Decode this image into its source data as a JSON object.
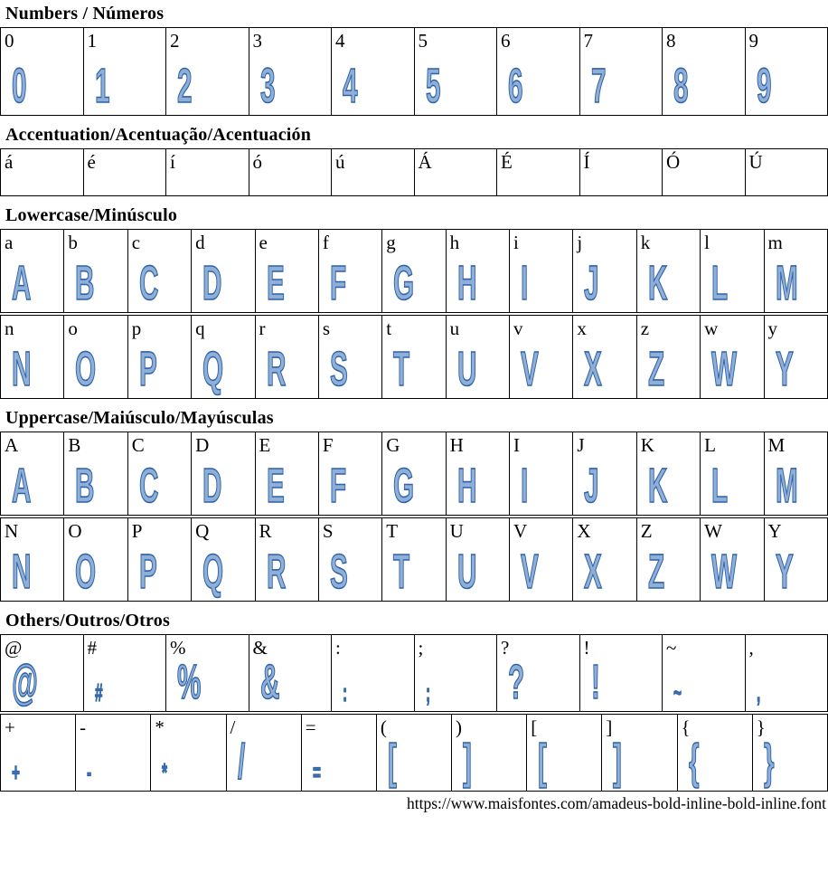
{
  "page": {
    "url_caption": "https://www.maisfontes.com/amadeus-bold-inline-bold-inline.font",
    "glyph_stroke_color": "#2d62a6",
    "glyph_fill_color": "#8fafd8",
    "border_color": "#000000"
  },
  "sections": [
    {
      "id": "numbers",
      "title": "Numbers / Números",
      "rows": [
        [
          {
            "label": "0",
            "glyph": "0"
          },
          {
            "label": "1",
            "glyph": "1"
          },
          {
            "label": "2",
            "glyph": "2"
          },
          {
            "label": "3",
            "glyph": "3"
          },
          {
            "label": "4",
            "glyph": "4"
          },
          {
            "label": "5",
            "glyph": "5"
          },
          {
            "label": "6",
            "glyph": "6"
          },
          {
            "label": "7",
            "glyph": "7"
          },
          {
            "label": "8",
            "glyph": "8"
          },
          {
            "label": "9",
            "glyph": "9"
          }
        ]
      ]
    },
    {
      "id": "accentuation",
      "title": "Accentuation/Acentuação/Acentuación",
      "rows": [
        [
          {
            "label": "á",
            "glyph": ""
          },
          {
            "label": "é",
            "glyph": ""
          },
          {
            "label": "í",
            "glyph": ""
          },
          {
            "label": "ó",
            "glyph": ""
          },
          {
            "label": "ú",
            "glyph": ""
          },
          {
            "label": "Á",
            "glyph": ""
          },
          {
            "label": "É",
            "glyph": ""
          },
          {
            "label": "Í",
            "glyph": ""
          },
          {
            "label": "Ó",
            "glyph": ""
          },
          {
            "label": "Ú",
            "glyph": ""
          }
        ]
      ]
    },
    {
      "id": "lowercase",
      "title": "Lowercase/Minúsculo",
      "rows": [
        [
          {
            "label": "a",
            "glyph": "A"
          },
          {
            "label": "b",
            "glyph": "B"
          },
          {
            "label": "c",
            "glyph": "C"
          },
          {
            "label": "d",
            "glyph": "D"
          },
          {
            "label": "e",
            "glyph": "E"
          },
          {
            "label": "f",
            "glyph": "F"
          },
          {
            "label": "g",
            "glyph": "G"
          },
          {
            "label": "h",
            "glyph": "H"
          },
          {
            "label": "i",
            "glyph": "I"
          },
          {
            "label": "j",
            "glyph": "J"
          },
          {
            "label": "k",
            "glyph": "K"
          },
          {
            "label": "l",
            "glyph": "L"
          },
          {
            "label": "m",
            "glyph": "M"
          }
        ],
        [
          {
            "label": "n",
            "glyph": "N"
          },
          {
            "label": "o",
            "glyph": "O"
          },
          {
            "label": "p",
            "glyph": "P"
          },
          {
            "label": "q",
            "glyph": "Q"
          },
          {
            "label": "r",
            "glyph": "R"
          },
          {
            "label": "s",
            "glyph": "S"
          },
          {
            "label": "t",
            "glyph": "T"
          },
          {
            "label": "u",
            "glyph": "U"
          },
          {
            "label": "v",
            "glyph": "V"
          },
          {
            "label": "x",
            "glyph": "X"
          },
          {
            "label": "z",
            "glyph": "Z"
          },
          {
            "label": "w",
            "glyph": "W"
          },
          {
            "label": "y",
            "glyph": "Y"
          }
        ]
      ]
    },
    {
      "id": "uppercase",
      "title": "Uppercase/Maiúsculo/Mayúsculas",
      "rows": [
        [
          {
            "label": "A",
            "glyph": "A"
          },
          {
            "label": "B",
            "glyph": "B"
          },
          {
            "label": "C",
            "glyph": "C"
          },
          {
            "label": "D",
            "glyph": "D"
          },
          {
            "label": "E",
            "glyph": "E"
          },
          {
            "label": "F",
            "glyph": "F"
          },
          {
            "label": "G",
            "glyph": "G"
          },
          {
            "label": "H",
            "glyph": "H"
          },
          {
            "label": "I",
            "glyph": "I"
          },
          {
            "label": "J",
            "glyph": "J"
          },
          {
            "label": "K",
            "glyph": "K"
          },
          {
            "label": "L",
            "glyph": "L"
          },
          {
            "label": "M",
            "glyph": "M"
          }
        ],
        [
          {
            "label": "N",
            "glyph": "N"
          },
          {
            "label": "O",
            "glyph": "O"
          },
          {
            "label": "P",
            "glyph": "P"
          },
          {
            "label": "Q",
            "glyph": "Q"
          },
          {
            "label": "R",
            "glyph": "R"
          },
          {
            "label": "S",
            "glyph": "S"
          },
          {
            "label": "T",
            "glyph": "T"
          },
          {
            "label": "U",
            "glyph": "U"
          },
          {
            "label": "V",
            "glyph": "V"
          },
          {
            "label": "X",
            "glyph": "X"
          },
          {
            "label": "Z",
            "glyph": "Z"
          },
          {
            "label": "W",
            "glyph": "W"
          },
          {
            "label": "Y",
            "glyph": "Y"
          }
        ]
      ]
    },
    {
      "id": "others",
      "title": "Others/Outros/Otros",
      "rows": [
        [
          {
            "label": "@",
            "glyph": "@"
          },
          {
            "label": "#",
            "glyph": "#",
            "size": "sm"
          },
          {
            "label": "%",
            "glyph": "%"
          },
          {
            "label": "&",
            "glyph": "&"
          },
          {
            "label": ":",
            "glyph": ":",
            "size": "sm"
          },
          {
            "label": ";",
            "glyph": ";",
            "size": "sm"
          },
          {
            "label": "?",
            "glyph": "?"
          },
          {
            "label": "!",
            "glyph": "!"
          },
          {
            "label": "~",
            "glyph": "~",
            "size": "sm"
          },
          {
            "label": ",",
            "glyph": ",",
            "size": "sm"
          }
        ],
        [
          {
            "label": "+",
            "glyph": "+",
            "size": "sm"
          },
          {
            "label": "-",
            "glyph": "-",
            "size": "sm"
          },
          {
            "label": "*",
            "glyph": "*",
            "size": "sm"
          },
          {
            "label": "/",
            "glyph": "/"
          },
          {
            "label": "=",
            "glyph": "=",
            "size": "sm"
          },
          {
            "label": "(",
            "glyph": "["
          },
          {
            "label": ")",
            "glyph": "]"
          },
          {
            "label": "[",
            "glyph": "["
          },
          {
            "label": "]",
            "glyph": "]"
          },
          {
            "label": "{",
            "glyph": "{"
          },
          {
            "label": "}",
            "glyph": "}"
          }
        ]
      ]
    }
  ]
}
